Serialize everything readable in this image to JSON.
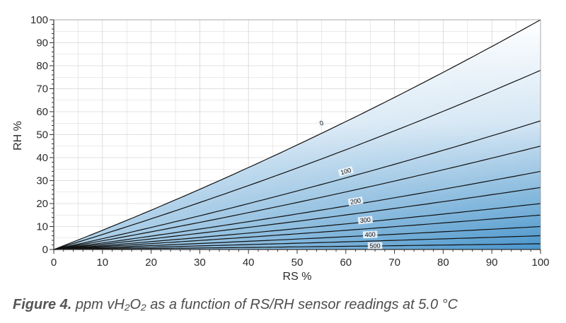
{
  "caption": {
    "label": "Figure 4.",
    "text": "ppm vH₂O₂ as a function of RS/RH sensor readings at 5.0 °C"
  },
  "colors": {
    "fill_dark": "#4a96cc",
    "fill_light": "#ffffff",
    "grid": "#d6d6d6",
    "contour": "#111111"
  },
  "chart_data": {
    "type": "contour",
    "xlabel": "RS %",
    "ylabel": "RH %",
    "xlim": [
      0,
      100
    ],
    "ylim": [
      0,
      100
    ],
    "xticks": [
      0,
      10,
      20,
      30,
      40,
      50,
      60,
      70,
      80,
      90,
      100
    ],
    "yticks": [
      0,
      10,
      20,
      30,
      40,
      50,
      60,
      70,
      80,
      90,
      100
    ],
    "grid": true,
    "contours": [
      {
        "level": 0,
        "label": "0",
        "y_at_x100": 100
      },
      {
        "level": 50,
        "label": "",
        "y_at_x100": 78
      },
      {
        "level": 100,
        "label": "100",
        "y_at_x100": 56
      },
      {
        "level": 150,
        "label": "",
        "y_at_x100": 45
      },
      {
        "level": 200,
        "label": "200",
        "y_at_x100": 34
      },
      {
        "level": 250,
        "label": "",
        "y_at_x100": 27
      },
      {
        "level": 300,
        "label": "300",
        "y_at_x100": 20
      },
      {
        "level": 350,
        "label": "",
        "y_at_x100": 15
      },
      {
        "level": 400,
        "label": "400",
        "y_at_x100": 10
      },
      {
        "level": 450,
        "label": "",
        "y_at_x100": 6
      },
      {
        "level": 500,
        "label": "500",
        "y_at_x100": 2.5
      }
    ],
    "label_positions": [
      {
        "label": "0",
        "x": 55,
        "y": 55
      },
      {
        "label": "100",
        "x": 60,
        "y": 34
      },
      {
        "label": "200",
        "x": 62,
        "y": 21
      },
      {
        "label": "300",
        "x": 64,
        "y": 12.8
      },
      {
        "label": "400",
        "x": 65,
        "y": 6.5
      },
      {
        "label": "500",
        "x": 66,
        "y": 1.6
      }
    ]
  }
}
